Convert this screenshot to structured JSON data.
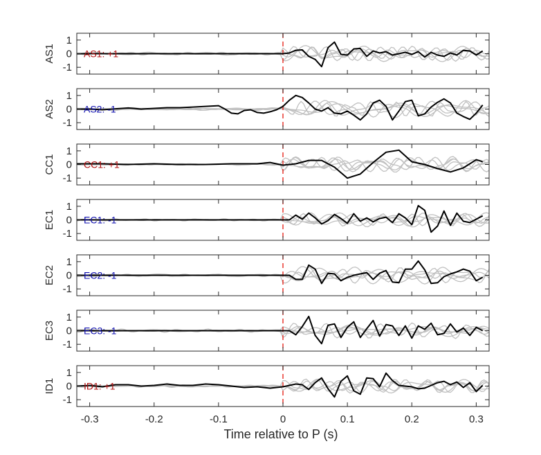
{
  "chart_data": {
    "type": "line",
    "xlabel": "Time relative to P (s)",
    "xlim": [
      -0.32,
      0.32
    ],
    "ylim": [
      -1.5,
      1.5
    ],
    "xticks": [
      -0.3,
      -0.2,
      -0.1,
      0,
      0.1,
      0.2,
      0.3
    ],
    "xtick_labels": [
      "-0.3",
      "-0.2",
      "-0.1",
      "0",
      "0.1",
      "0.2",
      "0.3"
    ],
    "yticks": [
      -1,
      0,
      1
    ],
    "ytick_labels": [
      "-1",
      "0",
      "1"
    ],
    "marker_line": {
      "x": 0,
      "color": "#e8281e",
      "style": "dashed"
    },
    "colors": {
      "main": "#000000",
      "background": "#c0c0c0",
      "positive_label": "#b01010",
      "negative_label": "#1010b0"
    },
    "panels": [
      {
        "ylabel": "AS1",
        "annotation": "AS1: +1",
        "polarity": "+1",
        "x": [
          -0.32,
          -0.28,
          -0.24,
          -0.2,
          -0.16,
          -0.12,
          -0.08,
          -0.04,
          0,
          0.01,
          0.02,
          0.03,
          0.04,
          0.05,
          0.06,
          0.07,
          0.08,
          0.09,
          0.1,
          0.11,
          0.12,
          0.13,
          0.14,
          0.15,
          0.16,
          0.17,
          0.18,
          0.19,
          0.2,
          0.21,
          0.22,
          0.23,
          0.24,
          0.25,
          0.26,
          0.27,
          0.28,
          0.29,
          0.3,
          0.31
        ],
        "y": [
          0,
          0,
          0,
          0,
          0,
          0,
          0,
          0,
          0,
          0.05,
          0.25,
          0.28,
          -0.2,
          -0.42,
          -0.95,
          0.45,
          0.85,
          -0.05,
          -0.1,
          0.35,
          0.38,
          -0.2,
          0.2,
          0.05,
          0.15,
          -0.1,
          0,
          0.1,
          -0.05,
          0.15,
          -0.25,
          0.1,
          -0.1,
          -0.2,
          0.05,
          -0.1,
          0.25,
          0.2,
          -0.1,
          0.2
        ]
      },
      {
        "ylabel": "AS2",
        "annotation": "AS2: -1",
        "polarity": "-1",
        "x": [
          -0.32,
          -0.3,
          -0.28,
          -0.26,
          -0.24,
          -0.22,
          -0.2,
          -0.18,
          -0.16,
          -0.14,
          -0.12,
          -0.1,
          -0.09,
          -0.08,
          -0.07,
          -0.06,
          -0.05,
          -0.04,
          -0.03,
          -0.02,
          -0.01,
          0,
          0.01,
          0.02,
          0.03,
          0.04,
          0.05,
          0.06,
          0.07,
          0.08,
          0.09,
          0.1,
          0.11,
          0.12,
          0.13,
          0.14,
          0.15,
          0.16,
          0.17,
          0.18,
          0.19,
          0.2,
          0.21,
          0.22,
          0.23,
          0.24,
          0.25,
          0.26,
          0.27,
          0.28,
          0.29,
          0.3,
          0.31
        ],
        "y": [
          0,
          0,
          -0.05,
          0.02,
          0.08,
          0,
          0.05,
          0.1,
          0.1,
          0.15,
          0.2,
          0.25,
          0,
          -0.3,
          -0.35,
          -0.1,
          -0.05,
          -0.25,
          -0.3,
          -0.2,
          -0.05,
          0.2,
          0.65,
          1.0,
          0.85,
          0.45,
          0,
          -0.15,
          0.1,
          -0.3,
          -0.35,
          -0.15,
          -0.45,
          -0.8,
          -0.35,
          0.45,
          0.65,
          0.2,
          -0.8,
          -0.15,
          0.55,
          0.65,
          -0.5,
          -0.35,
          0.15,
          0.5,
          0.75,
          0.45,
          -0.3,
          -0.55,
          -0.75,
          -0.3,
          0.3
        ]
      },
      {
        "ylabel": "CC1",
        "annotation": "CC1: +1",
        "polarity": "+1",
        "x": [
          -0.32,
          -0.28,
          -0.24,
          -0.2,
          -0.16,
          -0.12,
          -0.08,
          -0.04,
          -0.02,
          0,
          0.02,
          0.04,
          0.06,
          0.08,
          0.1,
          0.12,
          0.14,
          0.16,
          0.18,
          0.2,
          0.22,
          0.24,
          0.26,
          0.28,
          0.3,
          0.31
        ],
        "y": [
          0.05,
          0.05,
          0,
          0.05,
          0,
          0,
          0.05,
          0.05,
          0.15,
          -0.05,
          0.05,
          0.3,
          0.3,
          -0.2,
          -1.0,
          -0.7,
          0.15,
          0.9,
          1.05,
          0.2,
          0,
          -0.3,
          -0.55,
          -0.25,
          0.35,
          0.2
        ]
      },
      {
        "ylabel": "EC1",
        "annotation": "EC1: -1",
        "polarity": "-1",
        "x": [
          -0.32,
          -0.28,
          -0.24,
          -0.2,
          -0.16,
          -0.12,
          -0.08,
          -0.04,
          0,
          0.01,
          0.02,
          0.03,
          0.04,
          0.05,
          0.06,
          0.07,
          0.08,
          0.09,
          0.1,
          0.11,
          0.12,
          0.13,
          0.14,
          0.15,
          0.16,
          0.17,
          0.18,
          0.19,
          0.2,
          0.21,
          0.22,
          0.23,
          0.24,
          0.25,
          0.26,
          0.27,
          0.28,
          0.29,
          0.3,
          0.31
        ],
        "y": [
          0,
          0,
          0,
          0,
          0,
          0,
          0,
          0,
          0,
          0,
          0.35,
          0.05,
          0.5,
          0.15,
          -0.3,
          -0.05,
          0.4,
          0.1,
          -0.25,
          0.45,
          -0.1,
          0.15,
          -0.15,
          0.1,
          0.2,
          -0.2,
          0.45,
          0.15,
          -0.35,
          1.05,
          0.7,
          -0.9,
          -0.45,
          0.65,
          -0.4,
          0.5,
          -0.1,
          -0.2,
          0.05,
          0.3
        ]
      },
      {
        "ylabel": "EC2",
        "annotation": "EC2: -1",
        "polarity": "-1",
        "x": [
          -0.32,
          -0.28,
          -0.24,
          -0.2,
          -0.16,
          -0.12,
          -0.08,
          -0.04,
          0,
          0.01,
          0.02,
          0.03,
          0.04,
          0.05,
          0.06,
          0.07,
          0.08,
          0.09,
          0.1,
          0.11,
          0.12,
          0.13,
          0.14,
          0.15,
          0.16,
          0.17,
          0.18,
          0.19,
          0.2,
          0.21,
          0.22,
          0.23,
          0.24,
          0.25,
          0.26,
          0.27,
          0.28,
          0.29,
          0.3,
          0.31
        ],
        "y": [
          0,
          0,
          0,
          0,
          0,
          0,
          0,
          0,
          0,
          0,
          -0.3,
          -0.3,
          0.75,
          0.45,
          -0.6,
          0.15,
          0.1,
          -0.4,
          -0.15,
          0,
          0.1,
          0.2,
          -0.3,
          0.15,
          0.35,
          -0.5,
          -0.55,
          0.45,
          0.45,
          1.05,
          0.4,
          -0.6,
          -0.55,
          -0.1,
          0.1,
          0.25,
          0.45,
          0.3,
          -0.4,
          -0.15
        ]
      },
      {
        "ylabel": "EC3",
        "annotation": "EC3: -1",
        "polarity": "-1",
        "x": [
          -0.32,
          -0.28,
          -0.24,
          -0.2,
          -0.16,
          -0.12,
          -0.08,
          -0.04,
          0,
          0.01,
          0.02,
          0.03,
          0.04,
          0.05,
          0.06,
          0.07,
          0.08,
          0.09,
          0.1,
          0.11,
          0.12,
          0.13,
          0.14,
          0.15,
          0.16,
          0.17,
          0.18,
          0.19,
          0.2,
          0.21,
          0.22,
          0.23,
          0.24,
          0.25,
          0.26,
          0.27,
          0.28,
          0.29,
          0.3,
          0.31
        ],
        "y": [
          0,
          0,
          0,
          0,
          0,
          0,
          0,
          0,
          0,
          0,
          -0.3,
          0.3,
          1.05,
          -0.35,
          -0.95,
          0.4,
          0.5,
          -0.5,
          0.25,
          0.65,
          -0.5,
          0.15,
          0.75,
          -0.4,
          0.45,
          0.35,
          -0.35,
          0.35,
          -0.55,
          0.35,
          0.1,
          0.55,
          -0.3,
          -0.2,
          0.5,
          -0.1,
          0.2,
          -0.35,
          0.25,
          0
        ]
      },
      {
        "ylabel": "ID1",
        "annotation": "ID1: +1",
        "polarity": "+1",
        "x": [
          -0.32,
          -0.3,
          -0.28,
          -0.26,
          -0.24,
          -0.22,
          -0.2,
          -0.18,
          -0.16,
          -0.14,
          -0.12,
          -0.1,
          -0.08,
          -0.06,
          -0.04,
          -0.02,
          0,
          0.01,
          0.02,
          0.03,
          0.04,
          0.05,
          0.06,
          0.07,
          0.08,
          0.09,
          0.1,
          0.11,
          0.12,
          0.13,
          0.14,
          0.15,
          0.16,
          0.17,
          0.18,
          0.19,
          0.2,
          0.21,
          0.22,
          0.23,
          0.24,
          0.25,
          0.26,
          0.27,
          0.28,
          0.29,
          0.3,
          0.31
        ],
        "y": [
          0,
          0.05,
          -0.05,
          0.1,
          0.1,
          0,
          0.05,
          0.15,
          0.05,
          0.05,
          0.15,
          0.1,
          0,
          -0.1,
          -0.05,
          -0.15,
          -0.05,
          0.05,
          0.15,
          0.1,
          -0.25,
          0.25,
          0.6,
          -0.2,
          -0.8,
          0.35,
          0.75,
          -0.35,
          -0.6,
          0.6,
          0.55,
          -0.05,
          0.95,
          0.4,
          0.05,
          0,
          -0.05,
          -0.2,
          -0.15,
          0.05,
          0.25,
          0.35,
          0.1,
          0.3,
          -0.1,
          0.25,
          -0.4,
          0.05
        ]
      }
    ]
  }
}
